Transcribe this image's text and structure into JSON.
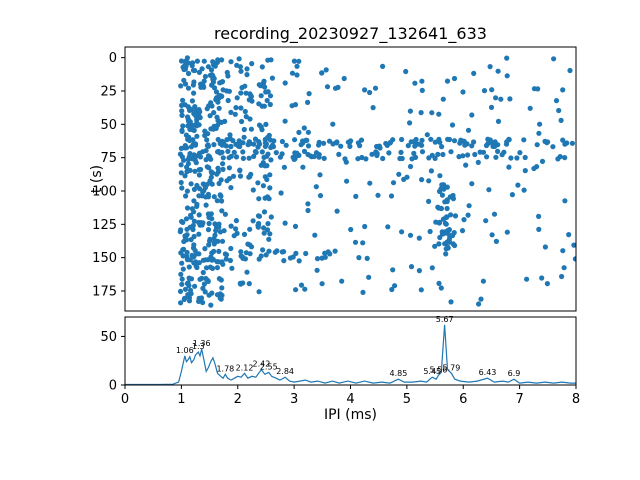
{
  "figure": {
    "title": "recording_20230927_132641_633",
    "background": "#ffffff",
    "axis_color": "#000000",
    "accent_color": "#1f77b4"
  },
  "chart_data": [
    {
      "type": "scatter",
      "title": "recording_20230927_132641_633",
      "xlabel": "",
      "ylabel": "t (s)",
      "xlim": [
        0,
        8
      ],
      "ylim": [
        -8,
        190
      ],
      "y_inverted": true,
      "yticks": [
        0,
        25,
        50,
        75,
        100,
        125,
        150,
        175
      ],
      "marker_color": "#1f77b4",
      "seed": 20230927,
      "point_clusters": [
        {
          "region": "vertical-band-1.0-1.3",
          "x": [
            0.98,
            1.28
          ],
          "t": [
            0,
            186
          ],
          "n": 150
        },
        {
          "region": "vertical-band-1.3-1.75",
          "x": [
            1.3,
            1.75
          ],
          "t": [
            0,
            186
          ],
          "n": 170
        },
        {
          "region": "band-1.8-2.3-upper",
          "x": [
            1.8,
            2.3
          ],
          "t": [
            0,
            95
          ],
          "n": 45
        },
        {
          "region": "vertical-band-2.4",
          "x": [
            2.35,
            2.62
          ],
          "t": [
            0,
            158
          ],
          "n": 55
        },
        {
          "region": "horizontal-band-64s",
          "x": [
            1.0,
            8.0
          ],
          "t": [
            61,
            67
          ],
          "n": 95
        },
        {
          "region": "horizontal-band-73s",
          "x": [
            1.0,
            8.0
          ],
          "t": [
            70,
            76
          ],
          "n": 75
        },
        {
          "region": "vertical-band-5.6",
          "x": [
            5.48,
            5.85
          ],
          "t": [
            95,
            150
          ],
          "n": 50
        },
        {
          "region": "horizontal-band-148s",
          "x": [
            1.0,
            4.2
          ],
          "t": [
            145,
            152
          ],
          "n": 28
        },
        {
          "region": "band-1.9-2.2-lower",
          "x": [
            1.85,
            2.25
          ],
          "t": [
            125,
            170
          ],
          "n": 20
        },
        {
          "region": "sparse-background",
          "x": [
            1.0,
            8.0
          ],
          "t": [
            0,
            186
          ],
          "n": 230
        }
      ]
    },
    {
      "type": "line",
      "xlabel": "IPI (ms)",
      "ylabel": "",
      "xlim": [
        0,
        8
      ],
      "ylim": [
        0,
        70
      ],
      "xticks": [
        0,
        1,
        2,
        3,
        4,
        5,
        6,
        7,
        8
      ],
      "yticks": [
        0,
        50
      ],
      "line_color": "#1f77b4",
      "points": [
        [
          0,
          0.5
        ],
        [
          0.3,
          0.5
        ],
        [
          0.6,
          0.5
        ],
        [
          0.85,
          0.8
        ],
        [
          0.95,
          3
        ],
        [
          1.0,
          14
        ],
        [
          1.03,
          22
        ],
        [
          1.06,
          30
        ],
        [
          1.09,
          24
        ],
        [
          1.12,
          26
        ],
        [
          1.15,
          29
        ],
        [
          1.18,
          23
        ],
        [
          1.22,
          26
        ],
        [
          1.25,
          31
        ],
        [
          1.3,
          34
        ],
        [
          1.33,
          30
        ],
        [
          1.36,
          37
        ],
        [
          1.4,
          26
        ],
        [
          1.44,
          14
        ],
        [
          1.48,
          18
        ],
        [
          1.52,
          24
        ],
        [
          1.56,
          28
        ],
        [
          1.6,
          21
        ],
        [
          1.64,
          12
        ],
        [
          1.7,
          9
        ],
        [
          1.74,
          7
        ],
        [
          1.78,
          11
        ],
        [
          1.82,
          7
        ],
        [
          1.88,
          5
        ],
        [
          1.94,
          7
        ],
        [
          2.0,
          9
        ],
        [
          2.06,
          8
        ],
        [
          2.12,
          12
        ],
        [
          2.18,
          7
        ],
        [
          2.25,
          9
        ],
        [
          2.32,
          8
        ],
        [
          2.42,
          16
        ],
        [
          2.48,
          11
        ],
        [
          2.55,
          13
        ],
        [
          2.6,
          9
        ],
        [
          2.68,
          7
        ],
        [
          2.75,
          5
        ],
        [
          2.84,
          8
        ],
        [
          2.92,
          4
        ],
        [
          3.0,
          3
        ],
        [
          3.1,
          4
        ],
        [
          3.2,
          5
        ],
        [
          3.3,
          3
        ],
        [
          3.42,
          4
        ],
        [
          3.55,
          2
        ],
        [
          3.68,
          4
        ],
        [
          3.8,
          2
        ],
        [
          3.95,
          4
        ],
        [
          4.1,
          2
        ],
        [
          4.25,
          4
        ],
        [
          4.4,
          2
        ],
        [
          4.55,
          3
        ],
        [
          4.7,
          2
        ],
        [
          4.85,
          6
        ],
        [
          4.95,
          3
        ],
        [
          5.1,
          3
        ],
        [
          5.25,
          4
        ],
        [
          5.35,
          3
        ],
        [
          5.45,
          8
        ],
        [
          5.52,
          6
        ],
        [
          5.56,
          10
        ],
        [
          5.61,
          13
        ],
        [
          5.67,
          62
        ],
        [
          5.72,
          16
        ],
        [
          5.79,
          12
        ],
        [
          5.85,
          6
        ],
        [
          5.95,
          4
        ],
        [
          6.1,
          3
        ],
        [
          6.25,
          4
        ],
        [
          6.43,
          7
        ],
        [
          6.55,
          3
        ],
        [
          6.7,
          4
        ],
        [
          6.8,
          3
        ],
        [
          6.9,
          6
        ],
        [
          7.0,
          2
        ],
        [
          7.15,
          3
        ],
        [
          7.3,
          2
        ],
        [
          7.45,
          3
        ],
        [
          7.6,
          2
        ],
        [
          7.75,
          3
        ],
        [
          7.9,
          2
        ],
        [
          8.0,
          2
        ]
      ],
      "annotations": [
        {
          "x": 1.06,
          "y": 30,
          "label": "1.06"
        },
        {
          "x": 1.3,
          "y": 34,
          "label": "1.3"
        },
        {
          "x": 1.36,
          "y": 37,
          "label": "1.36"
        },
        {
          "x": 1.78,
          "y": 11,
          "label": "1.78"
        },
        {
          "x": 2.12,
          "y": 12,
          "label": "2.12"
        },
        {
          "x": 2.42,
          "y": 16,
          "label": "2.42"
        },
        {
          "x": 2.55,
          "y": 13,
          "label": "2.55"
        },
        {
          "x": 2.84,
          "y": 8,
          "label": "2.84"
        },
        {
          "x": 4.85,
          "y": 6,
          "label": "4.85"
        },
        {
          "x": 5.45,
          "y": 8,
          "label": "5.45"
        },
        {
          "x": 5.56,
          "y": 10,
          "label": "5.56"
        },
        {
          "x": 5.67,
          "y": 62,
          "label": "5.67"
        },
        {
          "x": 5.79,
          "y": 12,
          "label": "5.79"
        },
        {
          "x": 6.43,
          "y": 7,
          "label": "6.43"
        },
        {
          "x": 6.9,
          "y": 6,
          "label": "6.9"
        }
      ]
    }
  ]
}
